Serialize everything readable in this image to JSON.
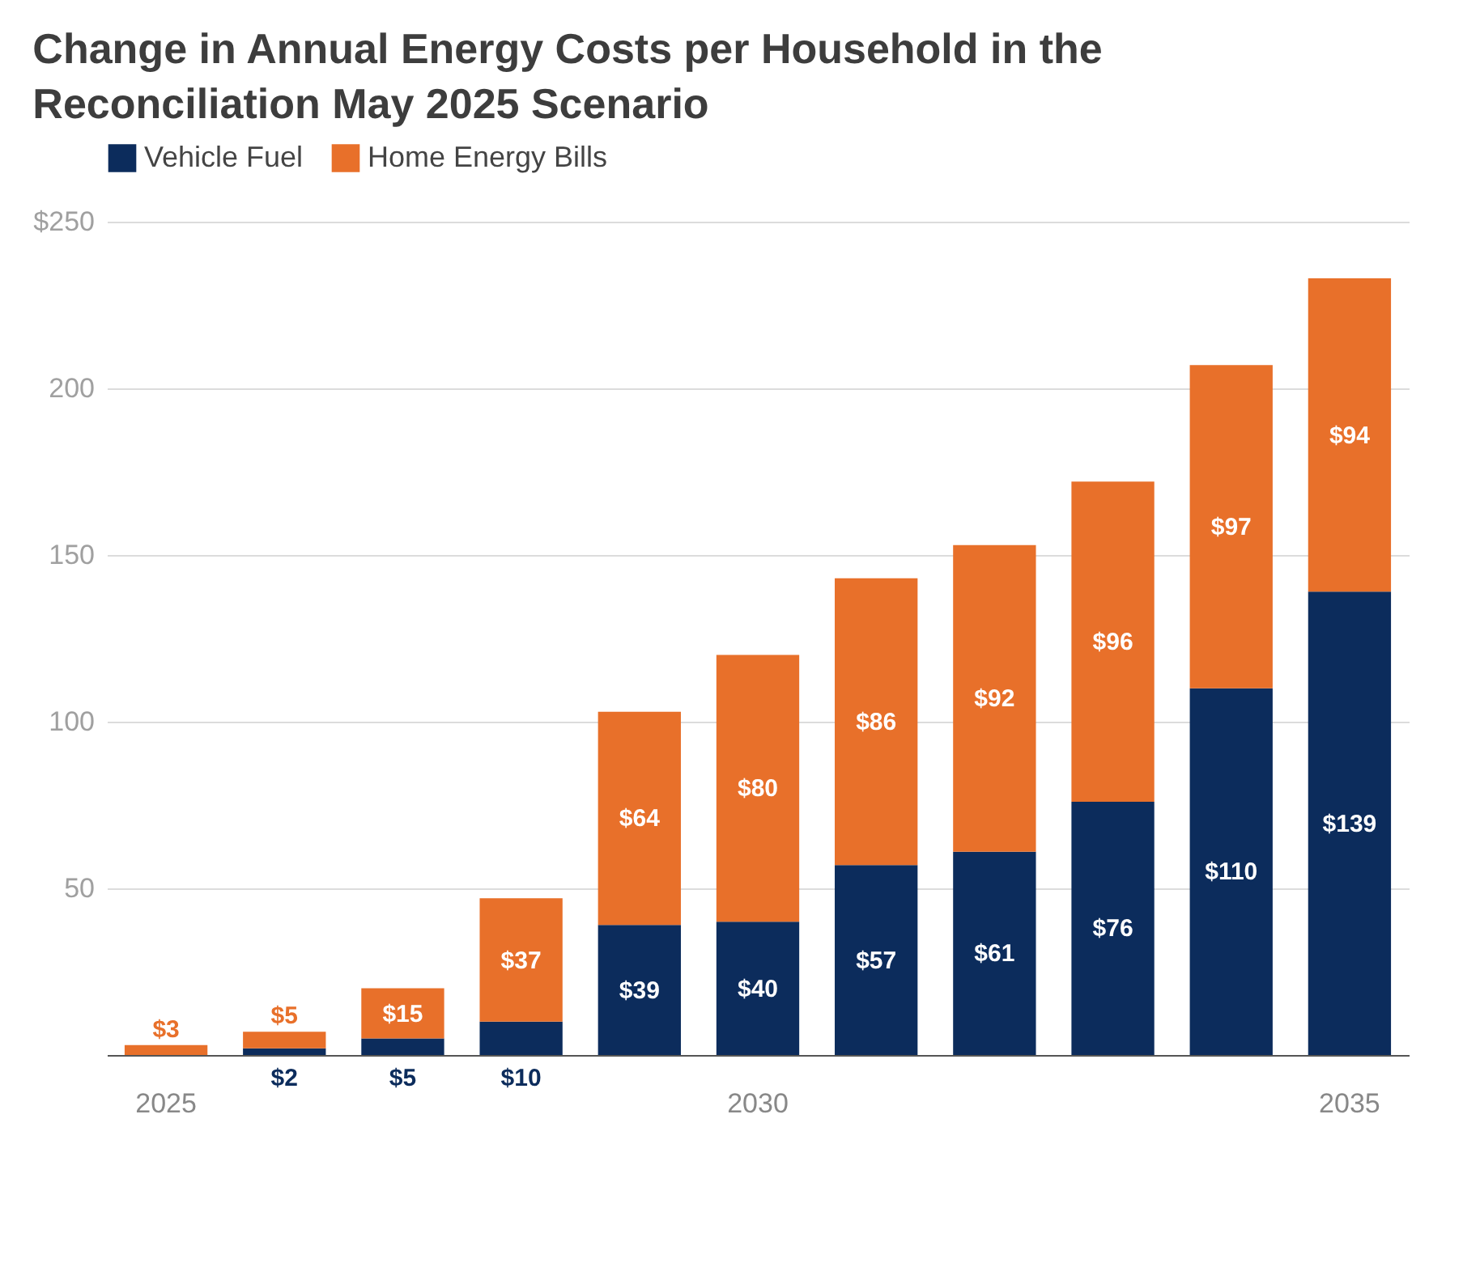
{
  "chart_data": {
    "type": "bar",
    "title": "Change in Annual Energy Costs per Household in the Reconciliation May 2025 Scenario",
    "categories": [
      "2025",
      null,
      null,
      null,
      null,
      "2030",
      null,
      null,
      null,
      null,
      "2035"
    ],
    "stacked": true,
    "series": [
      {
        "name": "Vehicle Fuel",
        "color": "#0c2c5c",
        "values": [
          null,
          2,
          5,
          10,
          39,
          40,
          57,
          61,
          76,
          110,
          139
        ],
        "value_labels": [
          null,
          "$2",
          "$5",
          "$10",
          "$39",
          "$40",
          "$57",
          "$61",
          "$76",
          "$110",
          "$139"
        ]
      },
      {
        "name": "Home Energy Bills",
        "color": "#e8702a",
        "values": [
          3,
          5,
          15,
          37,
          64,
          80,
          86,
          92,
          96,
          97,
          94
        ],
        "value_labels": [
          "$3",
          "$5",
          "$15",
          "$37",
          "$64",
          "$80",
          "$86",
          "$92",
          "$96",
          "$97",
          "$94"
        ]
      }
    ],
    "ylim": [
      0,
      250
    ],
    "yticks": [
      {
        "value": 0,
        "label": null
      },
      50,
      100,
      150,
      200,
      {
        "value": 250,
        "label": "$250"
      }
    ],
    "grid": "y",
    "legend": "top left"
  }
}
